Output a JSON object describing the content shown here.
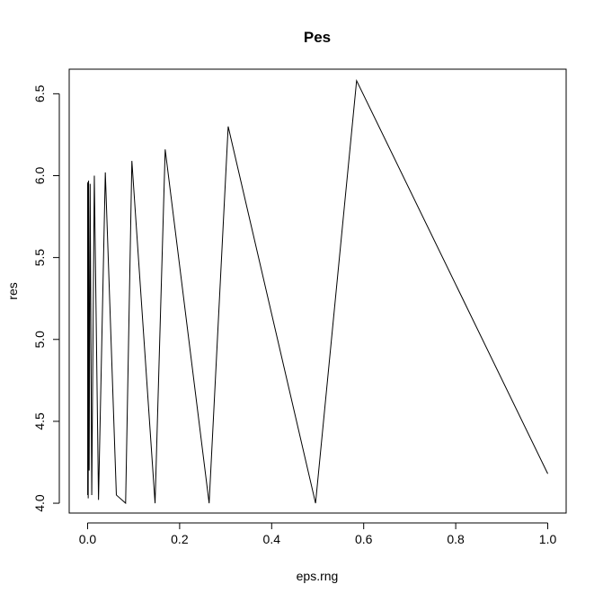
{
  "chart_data": {
    "type": "line",
    "title": "Pes",
    "xlabel": "eps.rng",
    "ylabel": "res",
    "xlim": [
      -0.04,
      1.04
    ],
    "ylim": [
      3.94,
      6.65
    ],
    "x_ticks": [
      0.0,
      0.2,
      0.4,
      0.6,
      0.8,
      1.0
    ],
    "x_tick_labels": [
      "0.0",
      "0.2",
      "0.4",
      "0.6",
      "0.8",
      "1.0"
    ],
    "y_ticks": [
      4.0,
      4.5,
      5.0,
      5.5,
      6.0,
      6.5
    ],
    "y_tick_labels": [
      "4.0",
      "4.5",
      "5.0",
      "5.5",
      "6.0",
      "6.5"
    ],
    "grid": false,
    "series": [
      {
        "color": "#000000",
        "x": [
          0.0001,
          0.0002,
          0.0003,
          0.0005,
          0.0008,
          0.0013,
          0.0021,
          0.0034,
          0.0055,
          0.009,
          0.0146,
          0.0237,
          0.0385,
          0.0625,
          0.0826,
          0.0962,
          0.1466,
          0.1686,
          0.2641,
          0.3055,
          0.4954,
          0.5846,
          1.0
        ],
        "y": [
          5.95,
          4.05,
          5.96,
          4.05,
          5.96,
          4.03,
          5.97,
          4.2,
          5.95,
          4.05,
          6.0,
          4.02,
          6.02,
          4.05,
          4.0,
          6.09,
          4.0,
          6.16,
          4.0,
          6.3,
          4.0,
          6.58,
          4.18
        ]
      }
    ]
  }
}
